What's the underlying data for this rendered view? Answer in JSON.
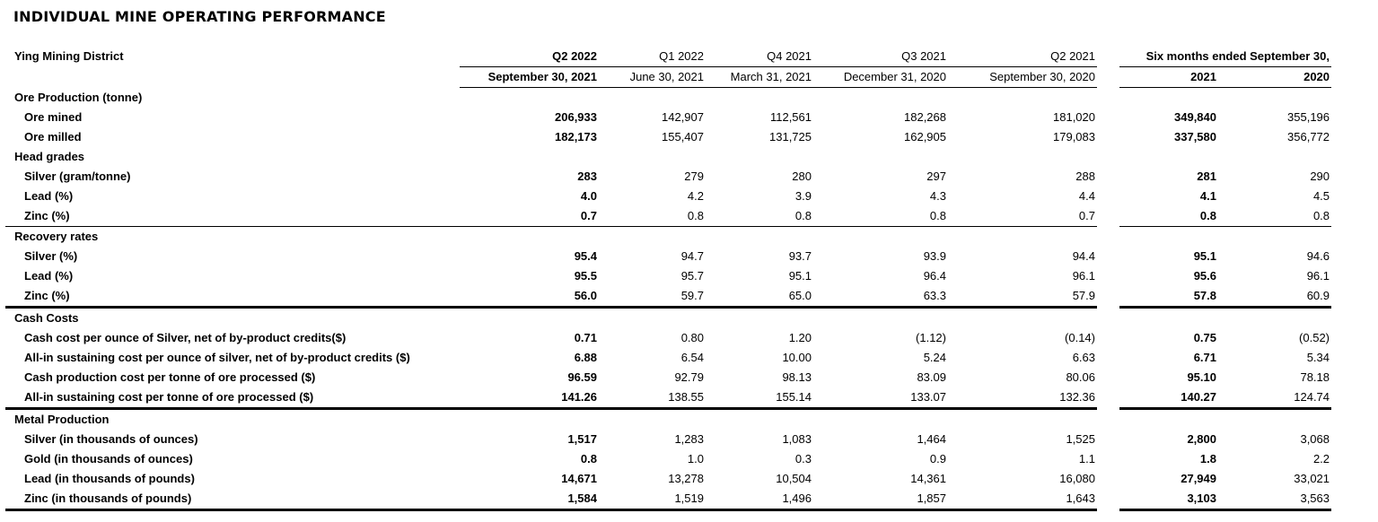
{
  "title": "INDIVIDUAL MINE OPERATING PERFORMANCE",
  "colors": {
    "text": "#000000",
    "rule_line": "#000000",
    "background": "#ffffff"
  },
  "table": {
    "district_label": "Ying Mining District",
    "quarter_headers": [
      {
        "period": "Q2 2022",
        "date": "September 30, 2021",
        "bold": true
      },
      {
        "period": "Q1 2022",
        "date": "June 30, 2021",
        "bold": false
      },
      {
        "period": "Q4 2021",
        "date": "March 31, 2021",
        "bold": false
      },
      {
        "period": "Q3 2021",
        "date": "December 31, 2020",
        "bold": false
      },
      {
        "period": "Q2 2021",
        "date": "September 30, 2020",
        "bold": false
      }
    ],
    "six_months_header": {
      "label": "Six months ended September 30,",
      "years": [
        "2021",
        "2020"
      ]
    },
    "rows": [
      {
        "type": "section",
        "label": "Ore Production (tonne)",
        "values": [
          "",
          "",
          "",
          "",
          "",
          "",
          ""
        ],
        "border": null
      },
      {
        "type": "data",
        "label": "Ore mined",
        "values": [
          "206,933",
          "142,907",
          "112,561",
          "182,268",
          "181,020",
          "349,840",
          "355,196"
        ],
        "border": null
      },
      {
        "type": "data",
        "label": "Ore milled",
        "values": [
          "182,173",
          "155,407",
          "131,725",
          "162,905",
          "179,083",
          "337,580",
          "356,772"
        ],
        "border": null
      },
      {
        "type": "section",
        "label": "Head grades",
        "values": [
          "",
          "",
          "",
          "",
          "",
          "",
          ""
        ],
        "border": null
      },
      {
        "type": "data",
        "label": "Silver (gram/tonne)",
        "values": [
          "283",
          "279",
          "280",
          "297",
          "288",
          "281",
          "290"
        ],
        "border": null
      },
      {
        "type": "data",
        "label": "Lead (%)",
        "values": [
          "4.0",
          "4.2",
          "3.9",
          "4.3",
          "4.4",
          "4.1",
          "4.5"
        ],
        "border": null
      },
      {
        "type": "data",
        "label": "Zinc (%)",
        "values": [
          "0.7",
          "0.8",
          "0.8",
          "0.8",
          "0.7",
          "0.8",
          "0.8"
        ],
        "border": "thin"
      },
      {
        "type": "section",
        "label": "Recovery rates",
        "values": [
          "",
          "",
          "",
          "",
          "",
          "",
          ""
        ],
        "border": null
      },
      {
        "type": "data",
        "label": "Silver (%)",
        "values": [
          "95.4",
          "94.7",
          "93.7",
          "93.9",
          "94.4",
          "95.1",
          "94.6"
        ],
        "border": null
      },
      {
        "type": "data",
        "label": "Lead (%)",
        "values": [
          "95.5",
          "95.7",
          "95.1",
          "96.4",
          "96.1",
          "95.6",
          "96.1"
        ],
        "border": null
      },
      {
        "type": "data",
        "label": "Zinc (%)",
        "values": [
          "56.0",
          "59.7",
          "65.0",
          "63.3",
          "57.9",
          "57.8",
          "60.9"
        ],
        "border": "thick"
      },
      {
        "type": "section",
        "label": "Cash Costs",
        "values": [
          "",
          "",
          "",
          "",
          "",
          "",
          ""
        ],
        "border": null
      },
      {
        "type": "data",
        "label": "Cash cost per ounce of Silver, net of by-product credits($)",
        "values": [
          "0.71",
          "0.80",
          "1.20",
          "(1.12)",
          "(0.14)",
          "0.75",
          "(0.52)"
        ],
        "border": null
      },
      {
        "type": "data",
        "label": "All-in sustaining cost per ounce of silver, net of by-product credits ($)",
        "values": [
          "6.88",
          "6.54",
          "10.00",
          "5.24",
          "6.63",
          "6.71",
          "5.34"
        ],
        "border": null
      },
      {
        "type": "data",
        "label": "Cash production cost per tonne of ore processed ($)",
        "values": [
          "96.59",
          "92.79",
          "98.13",
          "83.09",
          "80.06",
          "95.10",
          "78.18"
        ],
        "border": null
      },
      {
        "type": "data",
        "label": "All-in sustaining cost per tonne of ore processed ($)",
        "values": [
          "141.26",
          "138.55",
          "155.14",
          "133.07",
          "132.36",
          "140.27",
          "124.74"
        ],
        "border": "thick"
      },
      {
        "type": "section",
        "label": "Metal Production",
        "values": [
          "",
          "",
          "",
          "",
          "",
          "",
          ""
        ],
        "border": null
      },
      {
        "type": "data",
        "label": "Silver (in thousands of ounces)",
        "values": [
          "1,517",
          "1,283",
          "1,083",
          "1,464",
          "1,525",
          "2,800",
          "3,068"
        ],
        "border": null
      },
      {
        "type": "data",
        "label": "Gold (in thousands of ounces)",
        "values": [
          "0.8",
          "1.0",
          "0.3",
          "0.9",
          "1.1",
          "1.8",
          "2.2"
        ],
        "border": null
      },
      {
        "type": "data",
        "label": "Lead (in thousands of pounds)",
        "values": [
          "14,671",
          "13,278",
          "10,504",
          "14,361",
          "16,080",
          "27,949",
          "33,021"
        ],
        "border": null
      },
      {
        "type": "data",
        "label": "Zinc (in thousands of pounds)",
        "values": [
          "1,584",
          "1,519",
          "1,496",
          "1,857",
          "1,643",
          "3,103",
          "3,563"
        ],
        "border": "thick"
      }
    ]
  }
}
